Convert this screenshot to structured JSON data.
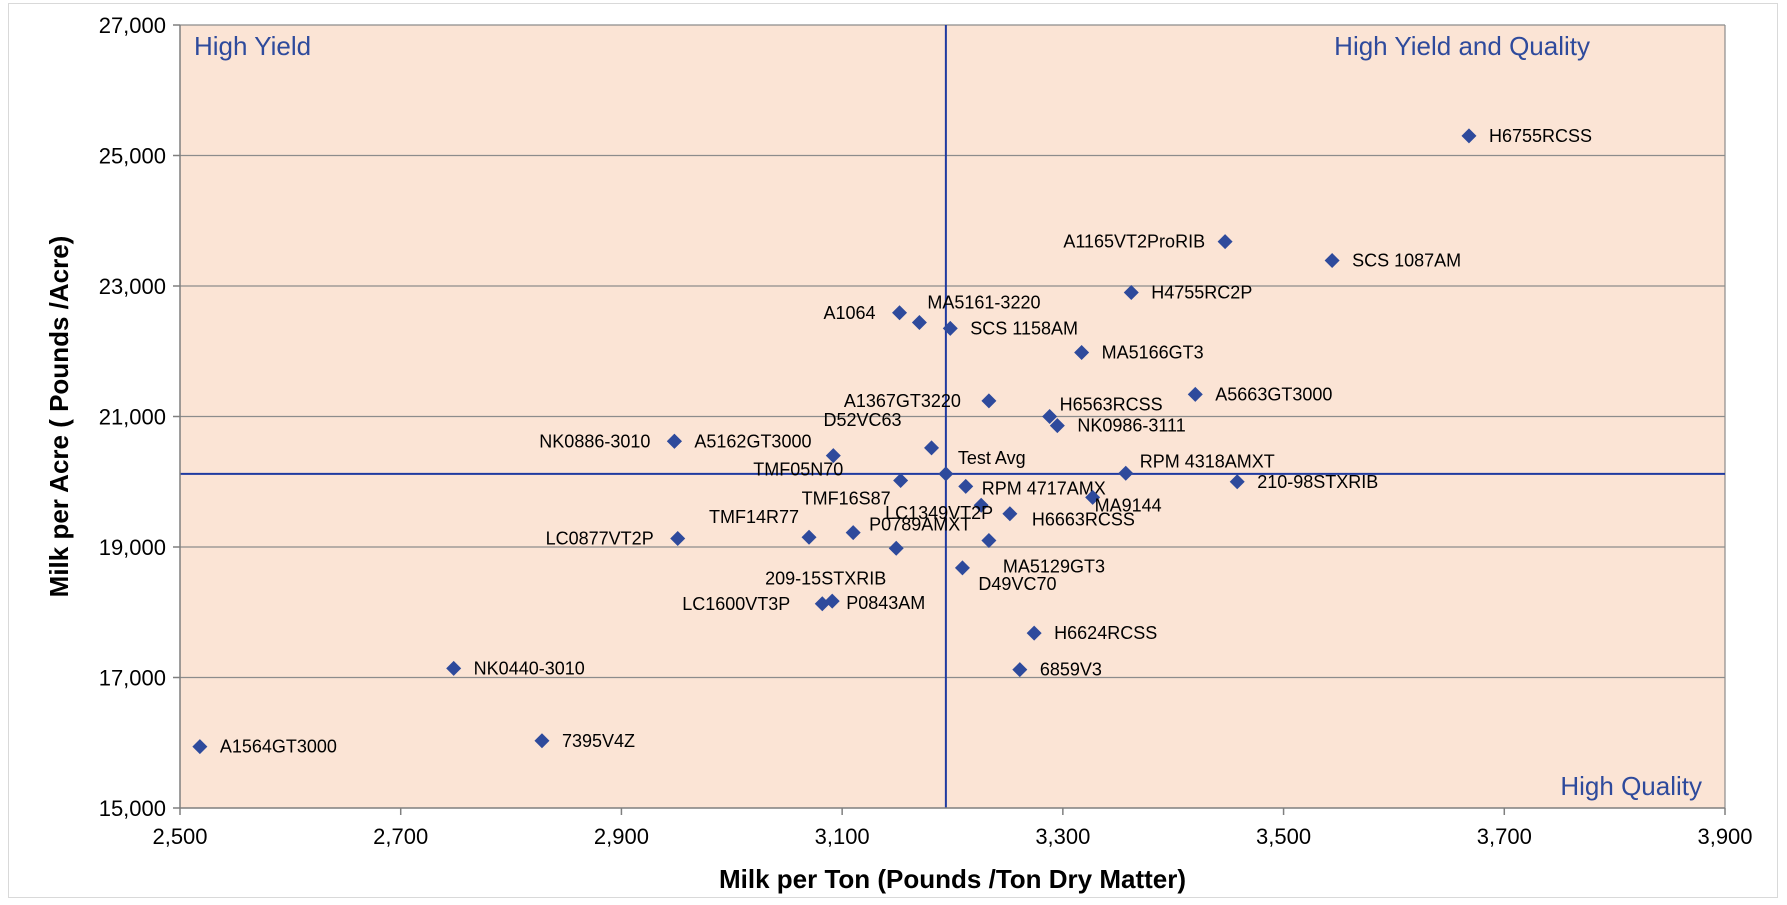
{
  "chart_data": {
    "type": "scatter",
    "xlabel": "Milk per Ton (Pounds /Ton Dry Matter)",
    "ylabel": "Milk per Acre ( Pounds /Acre)",
    "xlim": [
      2500,
      3900
    ],
    "ylim": [
      15000,
      27000
    ],
    "x_ticks": [
      2500,
      2700,
      2900,
      3100,
      3300,
      3500,
      3700,
      3900
    ],
    "y_ticks": [
      15000,
      17000,
      19000,
      21000,
      23000,
      25000,
      27000
    ],
    "x_tick_labels": [
      "2,500",
      "2,700",
      "2,900",
      "3,100",
      "3,300",
      "3,500",
      "3,700",
      "3,900"
    ],
    "y_tick_labels": [
      "15,000",
      "17,000",
      "19,000",
      "21,000",
      "23,000",
      "25,000",
      "27,000"
    ],
    "grid": "horizontal",
    "plot_background": "#fbe4d5",
    "marker_color": "#2e4a9c",
    "reference_lines": {
      "x": 3194,
      "y": 20120,
      "color": "#1f3aa0"
    },
    "quadrant_labels": {
      "top_left": "High Yield",
      "top_right": "High Yield and Quality",
      "bottom_right": "High Quality"
    },
    "points": [
      {
        "label": "H6755RCSS",
        "x": 3668,
        "y": 25300
      },
      {
        "label": "A1165VT2ProRIB",
        "x": 3447,
        "y": 23680
      },
      {
        "label": "SCS 1087AM",
        "x": 3544,
        "y": 23390
      },
      {
        "label": "H4755RC2P",
        "x": 3362,
        "y": 22900
      },
      {
        "label": "A1064",
        "x": 3152,
        "y": 22590
      },
      {
        "label": "MA5161-3220",
        "x": 3170,
        "y": 22440
      },
      {
        "label": "SCS 1158AM",
        "x": 3198,
        "y": 22350
      },
      {
        "label": "MA5166GT3",
        "x": 3317,
        "y": 21980
      },
      {
        "label": "A5663GT3000",
        "x": 3420,
        "y": 21340
      },
      {
        "label": "A1367GT3220",
        "x": 3233,
        "y": 21240
      },
      {
        "label": "H6563RCSS",
        "x": 3288,
        "y": 21000
      },
      {
        "label": "NK0986-3111",
        "x": 3295,
        "y": 20860
      },
      {
        "label": "NK0886-3010",
        "x": 2948,
        "y": 20620
      },
      {
        "label": "A5162GT3000",
        "x": 2948,
        "y": 20620
      },
      {
        "label": "D52VC63",
        "x": 3181,
        "y": 20520
      },
      {
        "label": "TMF05N70",
        "x": 3092,
        "y": 20400
      },
      {
        "label": "Test Avg",
        "x": 3194,
        "y": 20120
      },
      {
        "label": "RPM 4318AMXT",
        "x": 3357,
        "y": 20130
      },
      {
        "label": "210-98STXRIB",
        "x": 3458,
        "y": 20000
      },
      {
        "label": "TMF16S87",
        "x": 3153,
        "y": 20020
      },
      {
        "label": "RPM 4717AMX",
        "x": 3212,
        "y": 19930
      },
      {
        "label": "MA9144",
        "x": 3327,
        "y": 19760
      },
      {
        "label": "LC1349VT2P",
        "x": 3226,
        "y": 19640
      },
      {
        "label": "H6663RCSS",
        "x": 3252,
        "y": 19510
      },
      {
        "label": "P0789AMXT",
        "x": 3110,
        "y": 19220
      },
      {
        "label": "TMF14R77",
        "x": 3070,
        "y": 19150
      },
      {
        "label": "LC0877VT2P",
        "x": 2951,
        "y": 19130
      },
      {
        "label": "MA5129GT3",
        "x": 3233,
        "y": 19100
      },
      {
        "label": "209-15STXRIB",
        "x": 3149,
        "y": 18980
      },
      {
        "label": "D49VC70",
        "x": 3209,
        "y": 18680
      },
      {
        "label": "P0843AM",
        "x": 3091,
        "y": 18170
      },
      {
        "label": "LC1600VT3P",
        "x": 3082,
        "y": 18130
      },
      {
        "label": "H6624RCSS",
        "x": 3274,
        "y": 17680
      },
      {
        "label": "NK0440-3010",
        "x": 2748,
        "y": 17140
      },
      {
        "label": "6859V3",
        "x": 3261,
        "y": 17120
      },
      {
        "label": "A1564GT3000",
        "x": 2518,
        "y": 15940
      },
      {
        "label": "7395V4Z",
        "x": 2828,
        "y": 16030
      }
    ]
  }
}
